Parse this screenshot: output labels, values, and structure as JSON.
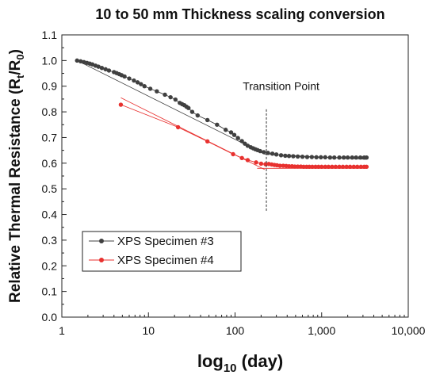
{
  "chart_data": {
    "type": "scatter",
    "title": "10 to 50 mm Thickness scaling conversion",
    "xlabel": {
      "main": "log",
      "sub": "10",
      "rest": " (day)"
    },
    "ylabel": {
      "p1": "Relative Thermal Resistance (R",
      "s1": "t",
      "p2": "/R",
      "s2": "0",
      "p3": ")"
    },
    "x_scale": "log",
    "xlim": [
      1,
      10000
    ],
    "ylim": [
      0.0,
      1.1
    ],
    "x_ticks": [
      {
        "value": 1,
        "label": "1"
      },
      {
        "value": 10,
        "label": "10"
      },
      {
        "value": 100,
        "label": "100"
      },
      {
        "value": 1000,
        "label": "1,000"
      },
      {
        "value": 10000,
        "label": "10,000"
      }
    ],
    "y_ticks": [
      {
        "value": 0.0,
        "label": "0.0"
      },
      {
        "value": 0.1,
        "label": "0.1"
      },
      {
        "value": 0.2,
        "label": "0.2"
      },
      {
        "value": 0.3,
        "label": "0.3"
      },
      {
        "value": 0.4,
        "label": "0.4"
      },
      {
        "value": 0.5,
        "label": "0.5"
      },
      {
        "value": 0.6,
        "label": "0.6"
      },
      {
        "value": 0.7,
        "label": "0.7"
      },
      {
        "value": 0.8,
        "label": "0.8"
      },
      {
        "value": 0.9,
        "label": "0.9"
      },
      {
        "value": 1.0,
        "label": "1.0"
      },
      {
        "value": 1.1,
        "label": "1.1"
      }
    ],
    "grid": false,
    "legend_placement": "lower-left",
    "annotation": {
      "text": "Transition Point",
      "x": 230
    },
    "series": [
      {
        "name": "XPS Specimen #3",
        "color": "#404040",
        "points": [
          [
            1.5,
            1.0
          ],
          [
            1.65,
            0.997
          ],
          [
            1.8,
            0.994
          ],
          [
            1.95,
            0.991
          ],
          [
            2.1,
            0.988
          ],
          [
            2.25,
            0.985
          ],
          [
            2.45,
            0.98
          ],
          [
            2.65,
            0.976
          ],
          [
            2.9,
            0.971
          ],
          [
            3.2,
            0.966
          ],
          [
            3.5,
            0.961
          ],
          [
            4.0,
            0.955
          ],
          [
            4.3,
            0.951
          ],
          [
            4.6,
            0.947
          ],
          [
            4.9,
            0.943
          ],
          [
            5.3,
            0.938
          ],
          [
            6.0,
            0.93
          ],
          [
            6.8,
            0.922
          ],
          [
            7.5,
            0.915
          ],
          [
            8.2,
            0.908
          ],
          [
            9.0,
            0.9
          ],
          [
            10.5,
            0.89
          ],
          [
            12.5,
            0.88
          ],
          [
            15.5,
            0.867
          ],
          [
            18.0,
            0.857
          ],
          [
            20.5,
            0.848
          ],
          [
            23.0,
            0.835
          ],
          [
            24.5,
            0.83
          ],
          [
            26.0,
            0.826
          ],
          [
            27.5,
            0.82
          ],
          [
            29.0,
            0.815
          ],
          [
            32.0,
            0.8
          ],
          [
            37.0,
            0.786
          ],
          [
            48.0,
            0.768
          ],
          [
            62.0,
            0.75
          ],
          [
            78.0,
            0.73
          ],
          [
            90.0,
            0.72
          ],
          [
            98.0,
            0.71
          ],
          [
            108.0,
            0.698
          ],
          [
            120.0,
            0.686
          ],
          [
            130.0,
            0.676
          ],
          [
            140.0,
            0.668
          ],
          [
            152.0,
            0.662
          ],
          [
            162.0,
            0.658
          ],
          [
            172.0,
            0.654
          ],
          [
            182.0,
            0.651
          ],
          [
            195.0,
            0.647
          ],
          [
            215.0,
            0.643
          ],
          [
            240.0,
            0.64
          ],
          [
            270.0,
            0.637
          ],
          [
            300.0,
            0.634
          ],
          [
            340.0,
            0.631
          ],
          [
            380.0,
            0.629
          ],
          [
            420.0,
            0.628
          ],
          [
            470.0,
            0.627
          ],
          [
            530.0,
            0.626
          ],
          [
            600.0,
            0.625
          ],
          [
            680.0,
            0.624
          ],
          [
            770.0,
            0.624
          ],
          [
            870.0,
            0.623
          ],
          [
            980.0,
            0.623
          ],
          [
            1100.0,
            0.623
          ],
          [
            1250.0,
            0.622
          ],
          [
            1400.0,
            0.622
          ],
          [
            1600.0,
            0.622
          ],
          [
            1800.0,
            0.622
          ],
          [
            2000.0,
            0.622
          ],
          [
            2250.0,
            0.622
          ],
          [
            2500.0,
            0.622
          ],
          [
            2800.0,
            0.622
          ],
          [
            3100.0,
            0.622
          ],
          [
            3300.0,
            0.622
          ]
        ],
        "fit_lines": [
          [
            [
              1.5,
              1.0
            ],
            [
              220.0,
              0.635
            ]
          ],
          [
            [
              220.0,
              0.635
            ],
            [
              3300.0,
              0.615
            ]
          ]
        ]
      },
      {
        "name": "XPS Specimen #4",
        "color": "#e8312f",
        "points": [
          [
            4.8,
            0.828
          ],
          [
            22.0,
            0.74
          ],
          [
            48.0,
            0.685
          ],
          [
            95.0,
            0.635
          ],
          [
            120.0,
            0.62
          ],
          [
            140.0,
            0.612
          ],
          [
            175.0,
            0.603
          ],
          [
            200.0,
            0.598
          ],
          [
            225.0,
            0.596
          ],
          [
            245.0,
            0.597
          ],
          [
            265.0,
            0.595
          ],
          [
            285.0,
            0.593
          ],
          [
            305.0,
            0.592
          ],
          [
            330.0,
            0.59
          ],
          [
            360.0,
            0.59
          ],
          [
            390.0,
            0.589
          ],
          [
            420.0,
            0.588
          ],
          [
            455.0,
            0.588
          ],
          [
            490.0,
            0.587
          ],
          [
            530.0,
            0.587
          ],
          [
            575.0,
            0.587
          ],
          [
            620.0,
            0.586
          ],
          [
            670.0,
            0.586
          ],
          [
            720.0,
            0.586
          ],
          [
            780.0,
            0.586
          ],
          [
            850.0,
            0.586
          ],
          [
            920.0,
            0.586
          ],
          [
            1000.0,
            0.586
          ],
          [
            1100.0,
            0.586
          ],
          [
            1200.0,
            0.586
          ],
          [
            1320.0,
            0.586
          ],
          [
            1450.0,
            0.586
          ],
          [
            1600.0,
            0.586
          ],
          [
            1760.0,
            0.586
          ],
          [
            1940.0,
            0.586
          ],
          [
            2130.0,
            0.586
          ],
          [
            2350.0,
            0.586
          ],
          [
            2580.0,
            0.586
          ],
          [
            2840.0,
            0.586
          ],
          [
            3100.0,
            0.586
          ],
          [
            3300.0,
            0.586
          ]
        ],
        "fit_lines": [
          [
            [
              4.8,
              0.855
            ],
            [
              220.0,
              0.575
            ]
          ],
          [
            [
              180.0,
              0.58
            ],
            [
              3300.0,
              0.58
            ]
          ]
        ]
      }
    ]
  }
}
